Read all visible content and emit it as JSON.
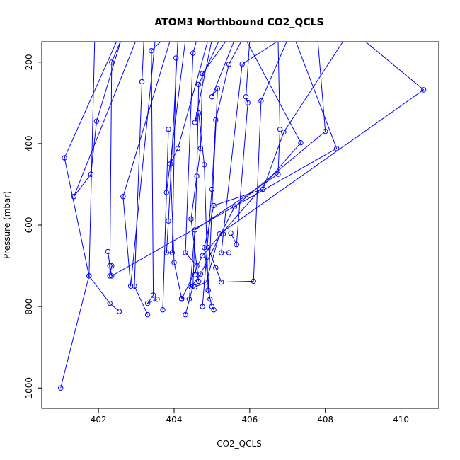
{
  "chart_data": {
    "type": "line",
    "title": "ATOM3 Northbound CO2_QCLS",
    "xlabel": "CO2_QCLS",
    "ylabel": "Pressure (mbar)",
    "xlim": [
      400.5,
      411
    ],
    "ylim": [
      1050,
      150
    ],
    "y_reversed": true,
    "grid": false,
    "xticks": [
      402,
      404,
      406,
      408,
      410
    ],
    "yticks": [
      200,
      400,
      600,
      800,
      1000
    ],
    "colors": {
      "series": "#0000ff"
    },
    "series": [
      {
        "x": [
          402.5,
          401.1,
          401.75,
          401.0
        ],
        "y": [
          145,
          435,
          725,
          1000
        ]
      },
      {
        "x": [
          402.6,
          402.35,
          402.3,
          402.35
        ],
        "y": [
          145,
          200,
          725,
          700
        ]
      },
      {
        "x": [
          403.0,
          401.35,
          401.8,
          401.95,
          402.6
        ],
        "y": [
          145,
          530,
          475,
          345,
          145
        ]
      },
      {
        "x": [
          401.9,
          401.75,
          402.3,
          402.55
        ],
        "y": [
          145,
          725,
          792,
          812
        ]
      },
      {
        "x": [
          403.9,
          402.65,
          402.85,
          403.5
        ],
        "y": [
          145,
          530,
          750,
          145
        ]
      },
      {
        "x": [
          403.2,
          403.15,
          402.95,
          403.3
        ],
        "y": [
          145,
          248,
          750,
          820
        ]
      },
      {
        "x": [
          403.7,
          403.4,
          403.45,
          403.3,
          403.55
        ],
        "y": [
          145,
          172,
          772,
          792,
          782
        ]
      },
      {
        "x": [
          404.3,
          403.8,
          403.7,
          403.85
        ],
        "y": [
          145,
          520,
          808,
          365
        ]
      },
      {
        "x": [
          404.1,
          403.85,
          403.8,
          403.95,
          404.05
        ],
        "y": [
          145,
          590,
          668,
          668,
          190
        ]
      },
      {
        "x": [
          404.9,
          404.1,
          403.9,
          404.0,
          404.2
        ],
        "y": [
          145,
          412,
          450,
          692,
          780
        ]
      },
      {
        "x": [
          404.6,
          404.5,
          404.3,
          404.6,
          404.55
        ],
        "y": [
          145,
          178,
          668,
          700,
          722
        ]
      },
      {
        "x": [
          405.2,
          404.65,
          404.6,
          404.5,
          404.3
        ],
        "y": [
          145,
          255,
          480,
          750,
          820
        ]
      },
      {
        "x": [
          405.4,
          404.75,
          404.7,
          404.45,
          404.65
        ],
        "y": [
          145,
          228,
          412,
          585,
          738
        ]
      },
      {
        "x": [
          405.0,
          404.55,
          404.65,
          404.8,
          404.9
        ],
        "y": [
          145,
          348,
          325,
          452,
          760
        ]
      },
      {
        "x": [
          405.6,
          405.0,
          405.15,
          404.9,
          405.0,
          405.05
        ],
        "y": [
          145,
          285,
          265,
          760,
          800,
          808
        ]
      },
      {
        "x": [
          405.8,
          405.45,
          405.1,
          405.0,
          404.75
        ],
        "y": [
          145,
          205,
          342,
          512,
          800
        ]
      },
      {
        "x": [
          406.8,
          405.8,
          405.3,
          405.25,
          405.45
        ],
        "y": [
          145,
          205,
          622,
          668,
          668
        ]
      },
      {
        "x": [
          406.0,
          405.9,
          405.95,
          405.65,
          405.5
        ],
        "y": [
          145,
          285,
          300,
          648,
          620
        ]
      },
      {
        "x": [
          407.0,
          406.3,
          406.1,
          405.25,
          405.1,
          404.9
        ],
        "y": [
          145,
          295,
          738,
          740,
          705,
          655
        ]
      },
      {
        "x": [
          408.5,
          406.9,
          406.35,
          405.05,
          404.8,
          404.95
        ],
        "y": [
          145,
          372,
          512,
          552,
          655,
          782
        ]
      },
      {
        "x": [
          409.0,
          410.6,
          405.2,
          404.85,
          404.55
        ],
        "y": [
          145,
          268,
          622,
          740,
          752
        ]
      },
      {
        "x": [
          407.8,
          408.0,
          405.6,
          404.7,
          404.45
        ],
        "y": [
          145,
          370,
          555,
          720,
          752
        ]
      },
      {
        "x": [
          407.2,
          408.3,
          402.35,
          402.3,
          402.25
        ],
        "y": [
          145,
          412,
          725,
          700,
          665
        ]
      },
      {
        "x": [
          406.75,
          406.8,
          406.75,
          404.55,
          404.4
        ],
        "y": [
          145,
          365,
          475,
          612,
          782
        ]
      },
      {
        "x": [
          405.9,
          407.35,
          404.75,
          404.2
        ],
        "y": [
          145,
          398,
          675,
          782
        ]
      }
    ]
  }
}
